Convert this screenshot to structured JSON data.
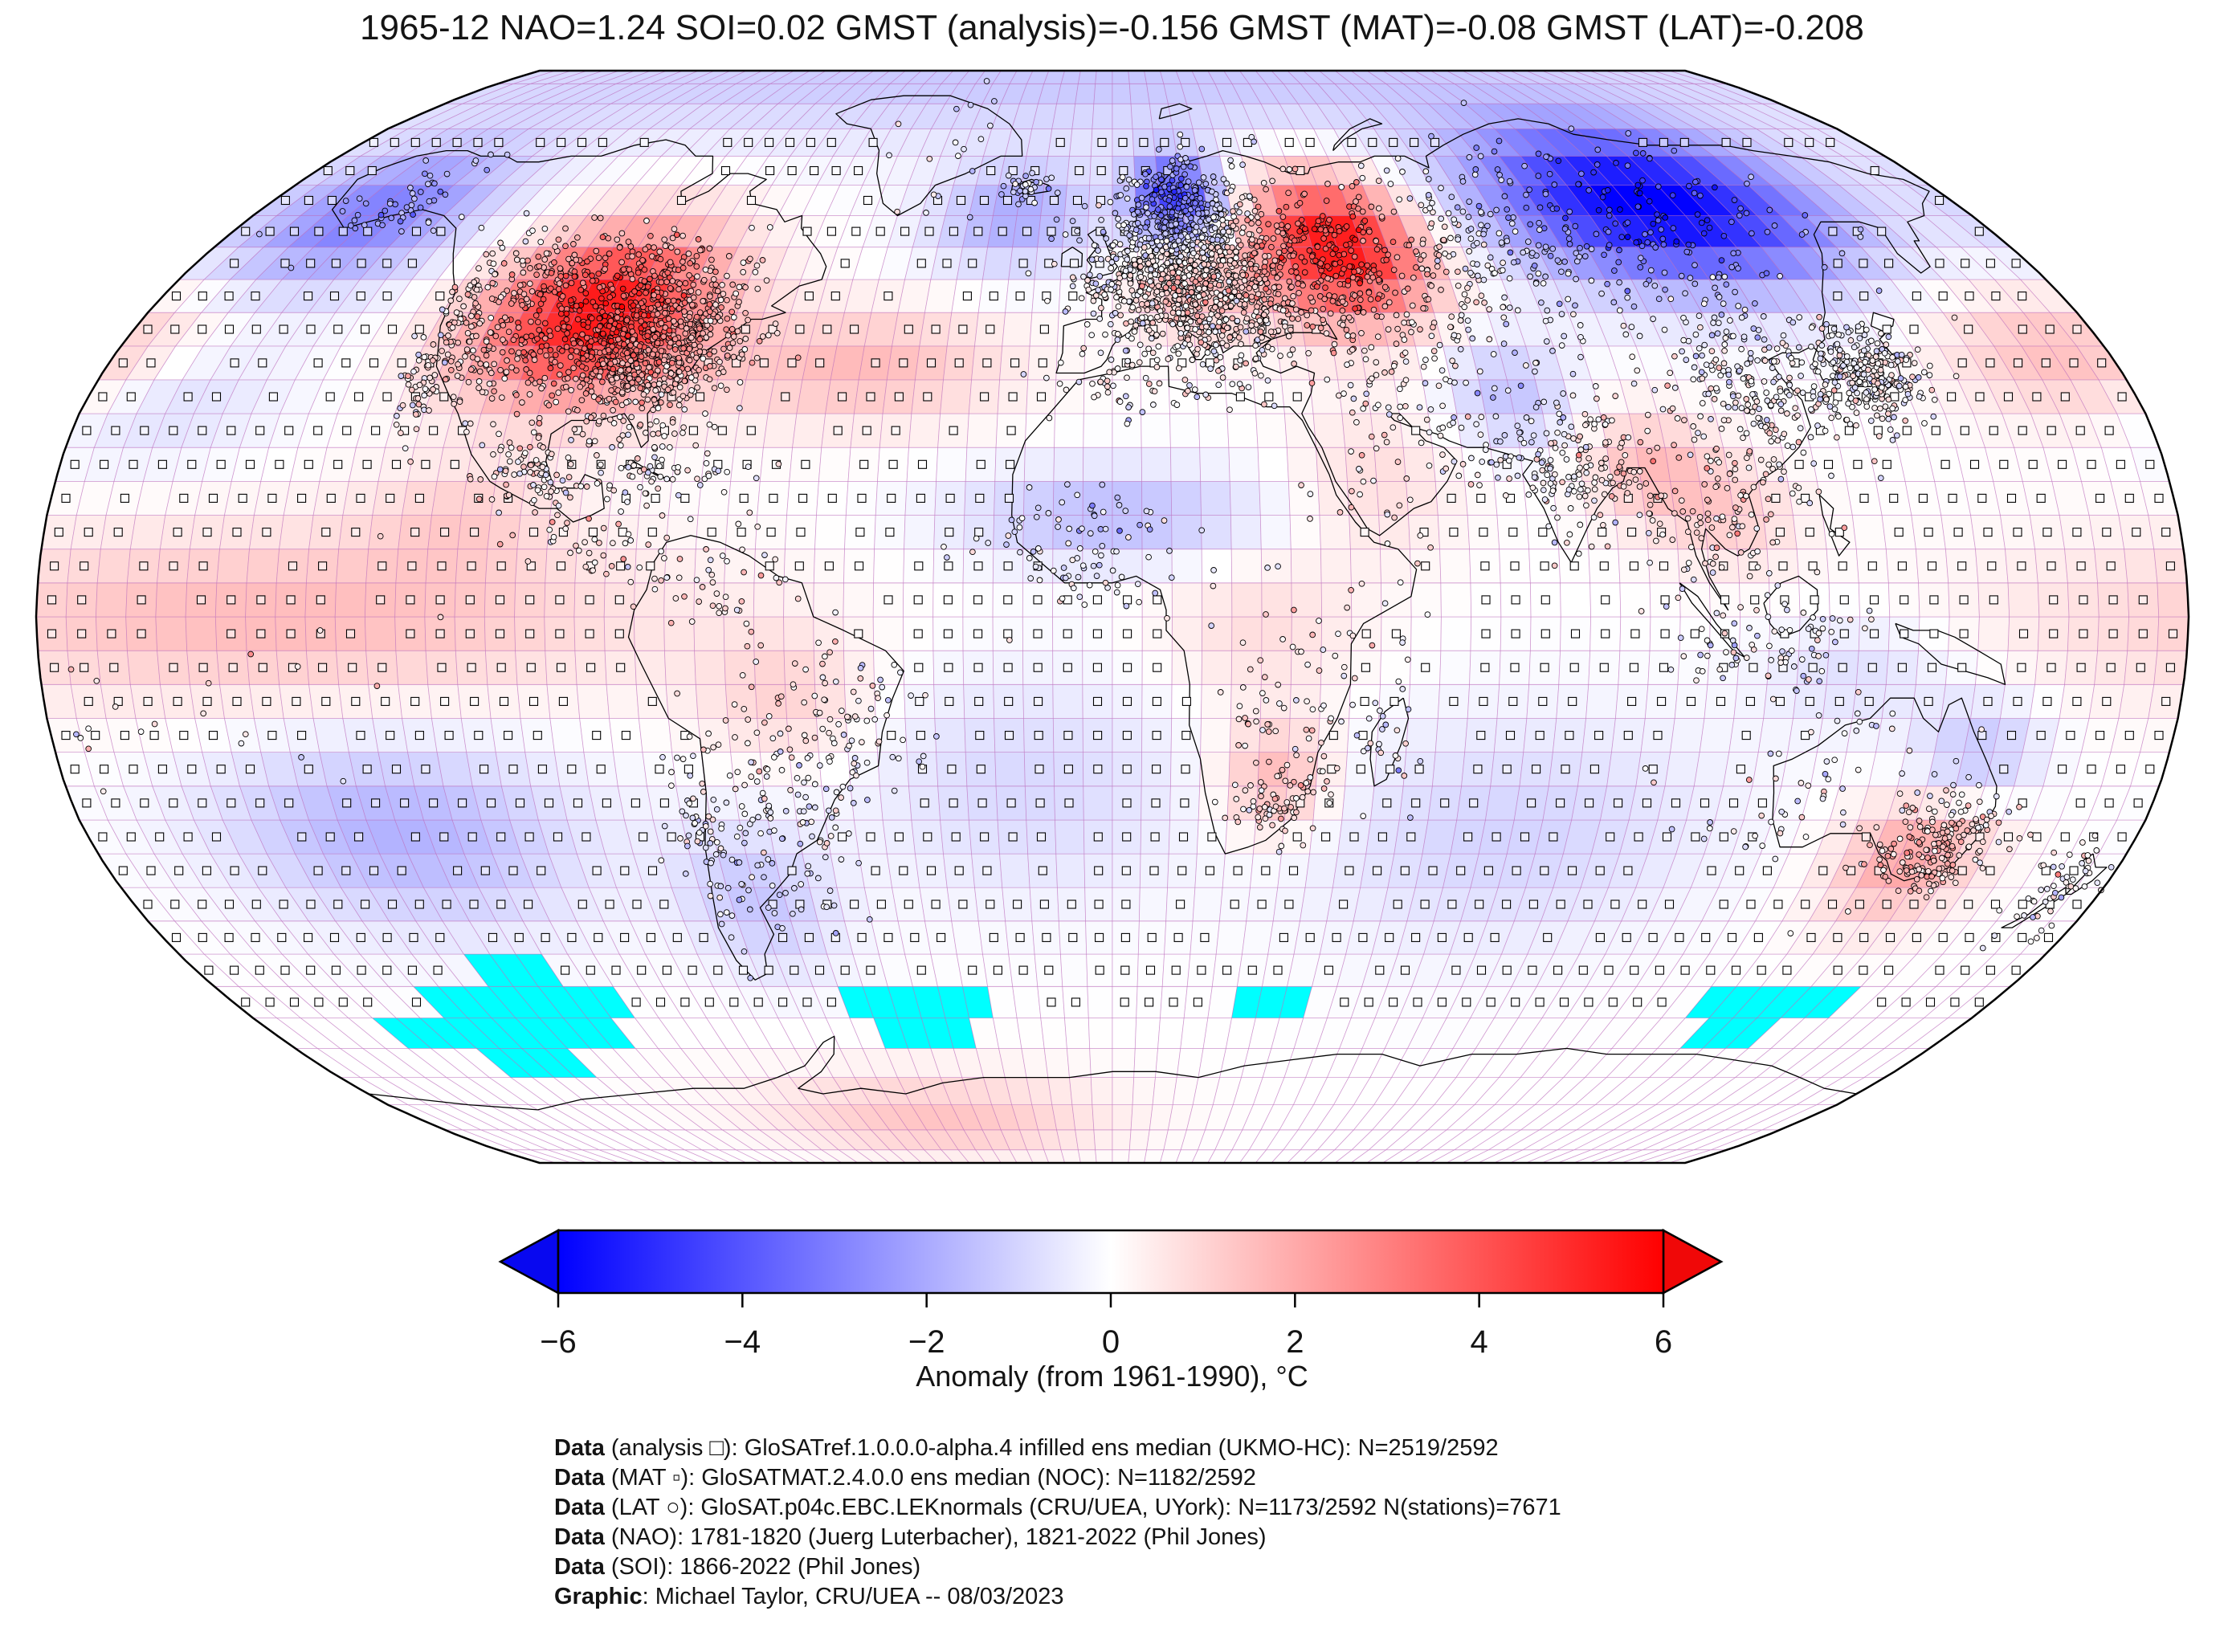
{
  "title": "1965-12 NAO=1.24 SOI=0.02 GMST (analysis)=-0.156 GMST (MAT)=-0.08 GMST (LAT)=-0.208",
  "colorbar": {
    "label": "Anomaly (from 1961-1990), °C",
    "tick_labels": [
      "−6",
      "−4",
      "−2",
      "0",
      "2",
      "4",
      "6"
    ],
    "tick_values": [
      -6,
      -4,
      -2,
      0,
      2,
      4,
      6
    ],
    "vmin": -6,
    "vmax": 6,
    "color_neg": "#0000ff",
    "color_mid": "#ffffff",
    "color_pos": "#ff0000"
  },
  "caption": {
    "0": {
      "bold": "Data",
      "text": " (analysis □): GloSATref.1.0.0.0-alpha.4 infilled ens median (UKMO-HC): N=2519/2592"
    },
    "1": {
      "bold": "Data",
      "text": " (MAT ▫): GloSATMAT.2.4.0.0 ens median (NOC): N=1182/2592"
    },
    "2": {
      "bold": "Data",
      "text": " (LAT ○): GloSAT.p04c.EBC.LEKnormals (CRU/UEA, UYork): N=1173/2592 N(stations)=7671"
    },
    "3": {
      "bold": "Data",
      "text": " (NAO): 1781-1820 (Juerg Luterbacher), 1821-2022 (Phil Jones)"
    },
    "4": {
      "bold": "Data",
      "text": " (SOI): 1866-2022 (Phil Jones)"
    },
    "5": {
      "bold": "Graphic",
      "text": ": Michael Taylor, CRU/UEA -- 08/03/2023"
    }
  },
  "map": {
    "grid_deg": 5,
    "gridline_color": "#bb6cbb",
    "coastline_color": "#000000",
    "missing_color": "#00ffff",
    "marker_legend": {
      "analysis": "open-square-per-grid-cell",
      "mat": "small-filled-square-per-ocean-cell",
      "lat": "circle-per-station"
    }
  },
  "chart_data": {
    "type": "heatmap",
    "subtype": "global-temperature-anomaly-map",
    "projection": "robinson",
    "date": "1965-12",
    "indices": {
      "NAO": 1.24,
      "SOI": 0.02,
      "GMST_analysis": -0.156,
      "GMST_MAT": -0.08,
      "GMST_LAT": -0.208
    },
    "baseline": "1961-1990",
    "units": "°C",
    "colorbar_range": [
      -6,
      6
    ],
    "colorbar_ticks": [
      -6,
      -4,
      -2,
      0,
      2,
      4,
      6
    ],
    "grid_cells_total": 2592,
    "counts": {
      "analysis_cells": "2519/2592",
      "mat_cells": "1182/2592",
      "lat_cells": "1173/2592",
      "stations": 7671
    },
    "anomaly_features": [
      {
        "name": "north-america-warm",
        "lon": -96,
        "lat": 45,
        "amp": 5.6,
        "slon": 15,
        "slat": 9
      },
      {
        "name": "alaska-bering-cold",
        "lon": -155,
        "lat": 60,
        "amp": -3.0,
        "slon": 16,
        "slat": 8
      },
      {
        "name": "east-europe-warm",
        "lon": 45,
        "lat": 55,
        "amp": 5.8,
        "slon": 12,
        "slat": 8
      },
      {
        "name": "central-europe-warm",
        "lon": 15,
        "lat": 48,
        "amp": 1.2,
        "slon": 8,
        "slat": 5
      },
      {
        "name": "scandinavia-cold",
        "lon": 14,
        "lat": 63,
        "amp": -4.5,
        "slon": 7,
        "slat": 5
      },
      {
        "name": "siberia-cold",
        "lon": 115,
        "lat": 62,
        "amp": -6.2,
        "slon": 24,
        "slat": 9
      },
      {
        "name": "north-atlantic-cold",
        "lon": -20,
        "lat": 60,
        "amp": -2.0,
        "slon": 12,
        "slat": 6
      },
      {
        "name": "north-atlantic-warm",
        "lon": -45,
        "lat": 37,
        "amp": 1.6,
        "slon": 18,
        "slat": 6
      },
      {
        "name": "arctic-cold",
        "lon": 0,
        "lat": 86,
        "amp": -1.3,
        "slon": 200,
        "slat": 10
      },
      {
        "name": "equatorial-pacific-warm",
        "lon": -140,
        "lat": 0,
        "amp": 1.6,
        "slon": 45,
        "slat": 9
      },
      {
        "name": "south-pacific-cold",
        "lon": -125,
        "lat": -32,
        "amp": -1.8,
        "slon": 22,
        "slat": 10
      },
      {
        "name": "north-pacific-warm",
        "lon": 175,
        "lat": 38,
        "amp": 2.0,
        "slon": 16,
        "slat": 7
      },
      {
        "name": "mid-pacific-cold",
        "lon": -170,
        "lat": 33,
        "amp": -1.3,
        "slon": 15,
        "slat": 7
      },
      {
        "name": "east-pacific-mexico-warm",
        "lon": -110,
        "lat": 15,
        "amp": 0.9,
        "slon": 12,
        "slat": 6
      },
      {
        "name": "sahel-cold",
        "lon": 0,
        "lat": 15,
        "amp": -1.6,
        "slon": 18,
        "slat": 5
      },
      {
        "name": "south-africa-warm",
        "lon": 28,
        "lat": -24,
        "amp": 1.8,
        "slon": 7,
        "slat": 6
      },
      {
        "name": "central-africa-warm",
        "lon": 25,
        "lat": -2,
        "amp": 0.8,
        "slon": 12,
        "slat": 8
      },
      {
        "name": "arabia-warm",
        "lon": 45,
        "lat": 20,
        "amp": 0.8,
        "slon": 10,
        "slat": 8
      },
      {
        "name": "south-atlantic-cold",
        "lon": -15,
        "lat": -25,
        "amp": -0.9,
        "slon": 20,
        "slat": 12
      },
      {
        "name": "indian-ocean-cold",
        "lon": 70,
        "lat": -32,
        "amp": -1.0,
        "slon": 25,
        "slat": 12
      },
      {
        "name": "se-australia-warm",
        "lon": 142,
        "lat": -35,
        "amp": 2.2,
        "slon": 9,
        "slat": 7
      },
      {
        "name": "queensland-cold",
        "lon": 147,
        "lat": -21,
        "amp": -1.5,
        "slon": 8,
        "slat": 6
      },
      {
        "name": "argentina-cold",
        "lon": -65,
        "lat": -42,
        "amp": -1.3,
        "slon": 10,
        "slat": 8
      },
      {
        "name": "brazil-warm",
        "lon": -55,
        "lat": -12,
        "amp": 1.0,
        "slon": 10,
        "slat": 7
      },
      {
        "name": "afghanistan-cold",
        "lon": 70,
        "lat": 33,
        "amp": -1.4,
        "slon": 8,
        "slat": 6
      },
      {
        "name": "bengal-warm",
        "lon": 92,
        "lat": 22,
        "amp": 1.5,
        "slon": 8,
        "slat": 6
      },
      {
        "name": "indochina-warm",
        "lon": 105,
        "lat": 15,
        "amp": 1.0,
        "slon": 8,
        "slat": 6
      },
      {
        "name": "indonesia-cold",
        "lon": 125,
        "lat": -8,
        "amp": -0.8,
        "slon": 12,
        "slat": 6
      },
      {
        "name": "antarctic-coast-warm",
        "lon": -45,
        "lat": -78,
        "amp": 1.4,
        "slon": 30,
        "slat": 6
      }
    ],
    "missing_cells": [
      {
        "lat_range": [
          -55,
          -50
        ],
        "lon_range": [
          -125,
          -110
        ]
      },
      {
        "lat_range": [
          -60,
          -55
        ],
        "lon_range": [
          -140,
          -100
        ]
      },
      {
        "lat_range": [
          -65,
          -60
        ],
        "lon_range": [
          -155,
          -105
        ]
      },
      {
        "lat_range": [
          -70,
          -65
        ],
        "lon_range": [
          -140,
          -120
        ]
      },
      {
        "lat_range": [
          -60,
          -55
        ],
        "lon_range": [
          -55,
          -25
        ]
      },
      {
        "lat_range": [
          -65,
          -60
        ],
        "lon_range": [
          -50,
          -30
        ]
      },
      {
        "lat_range": [
          -60,
          -55
        ],
        "lon_range": [
          25,
          40
        ]
      },
      {
        "lat_range": [
          -60,
          -55
        ],
        "lon_range": [
          120,
          150
        ]
      },
      {
        "lat_range": [
          -65,
          -60
        ],
        "lon_range": [
          125,
          140
        ]
      }
    ],
    "station_clusters": [
      {
        "name": "us-east",
        "lon": -85,
        "lat": 40,
        "slon": 9,
        "slat": 6,
        "n": 1200
      },
      {
        "name": "us-west-interior",
        "lon": -112,
        "lat": 42,
        "slon": 6,
        "slat": 6,
        "n": 250
      },
      {
        "name": "us-pacific-coast",
        "lon": -122,
        "lat": 40,
        "slon": 2.5,
        "slat": 7,
        "n": 150
      },
      {
        "name": "canada-south",
        "lon": -100,
        "lat": 52,
        "slon": 14,
        "slat": 4,
        "n": 220
      },
      {
        "name": "alaska",
        "lon": -150,
        "lat": 62,
        "slon": 7,
        "slat": 4,
        "n": 70
      },
      {
        "name": "mexico",
        "lon": -99,
        "lat": 21,
        "slon": 5,
        "slat": 4,
        "n": 130
      },
      {
        "name": "central-america",
        "lon": -85,
        "lat": 12,
        "slon": 5,
        "slat": 4,
        "n": 60
      },
      {
        "name": "caribbean",
        "lon": -75,
        "lat": 21,
        "slon": 7,
        "slat": 3,
        "n": 70
      },
      {
        "name": "europe",
        "lon": 15,
        "lat": 50,
        "slon": 10,
        "slat": 6,
        "n": 1500
      },
      {
        "name": "scandinavia",
        "lon": 15,
        "lat": 62,
        "slon": 6,
        "slat": 4,
        "n": 280
      },
      {
        "name": "iceland",
        "lon": -19,
        "lat": 64.5,
        "slon": 2.5,
        "slat": 1.2,
        "n": 50
      },
      {
        "name": "west-russia",
        "lon": 42,
        "lat": 52,
        "slon": 10,
        "slat": 7,
        "n": 420
      },
      {
        "name": "west-siberia",
        "lon": 75,
        "lat": 55,
        "slon": 12,
        "slat": 6,
        "n": 180
      },
      {
        "name": "siberia",
        "lon": 105,
        "lat": 58,
        "slon": 18,
        "slat": 8,
        "n": 280
      },
      {
        "name": "china",
        "lon": 115,
        "lat": 33,
        "slon": 9,
        "slat": 7,
        "n": 380
      },
      {
        "name": "japan-korea",
        "lon": 135,
        "lat": 36,
        "slon": 4.5,
        "slat": 3.5,
        "n": 330
      },
      {
        "name": "india",
        "lon": 78,
        "lat": 22,
        "slon": 8,
        "slat": 6,
        "n": 280
      },
      {
        "name": "indochina",
        "lon": 102,
        "lat": 14,
        "slon": 6,
        "slat": 6,
        "n": 120
      },
      {
        "name": "indonesia",
        "lon": 112,
        "lat": -4,
        "slon": 10,
        "slat": 4,
        "n": 110
      },
      {
        "name": "se-australia",
        "lon": 146,
        "lat": -34,
        "slon": 5,
        "slat": 4,
        "n": 260
      },
      {
        "name": "australia-other",
        "lon": 125,
        "lat": -25,
        "slon": 11,
        "slat": 7,
        "n": 90
      },
      {
        "name": "new-zealand",
        "lon": 172,
        "lat": -40,
        "slon": 3.5,
        "slat": 4,
        "n": 70
      },
      {
        "name": "argentina",
        "lon": -60,
        "lat": -30,
        "slon": 8,
        "slat": 8,
        "n": 180
      },
      {
        "name": "chile",
        "lon": -71,
        "lat": -33,
        "slon": 2,
        "slat": 9,
        "n": 70
      },
      {
        "name": "brazil",
        "lon": -47,
        "lat": -18,
        "slon": 8,
        "slat": 7,
        "n": 140
      },
      {
        "name": "venezuela-colombia",
        "lon": -66,
        "lat": 5,
        "slon": 6,
        "slat": 4,
        "n": 60
      },
      {
        "name": "maghreb",
        "lon": 5,
        "lat": 34,
        "slon": 10,
        "slat": 2.5,
        "n": 80
      },
      {
        "name": "west-africa",
        "lon": -5,
        "lat": 10,
        "slon": 9,
        "slat": 5,
        "n": 130
      },
      {
        "name": "east-south-africa",
        "lon": 32,
        "lat": -12,
        "slon": 8,
        "slat": 8,
        "n": 110
      },
      {
        "name": "south-africa",
        "lon": 28,
        "lat": -28,
        "slon": 4,
        "slat": 3,
        "n": 90
      },
      {
        "name": "arabia-horn",
        "lon": 45,
        "lat": 15,
        "slon": 8,
        "slat": 8,
        "n": 40
      },
      {
        "name": "middle-east",
        "lon": 50,
        "lat": 33,
        "slon": 8,
        "slat": 6,
        "n": 110
      },
      {
        "name": "central-asia",
        "lon": 68,
        "lat": 45,
        "slon": 10,
        "slat": 5,
        "n": 90
      },
      {
        "name": "greenland-coast",
        "lon": -40,
        "lat": 70,
        "slon": 6,
        "slat": 6,
        "n": 25
      },
      {
        "name": "madagascar",
        "lon": 47,
        "lat": -19,
        "slon": 2,
        "slat": 3,
        "n": 25
      },
      {
        "name": "pacific-islands",
        "lon": -160,
        "lat": -15,
        "slon": 15,
        "slat": 8,
        "n": 30
      }
    ]
  }
}
